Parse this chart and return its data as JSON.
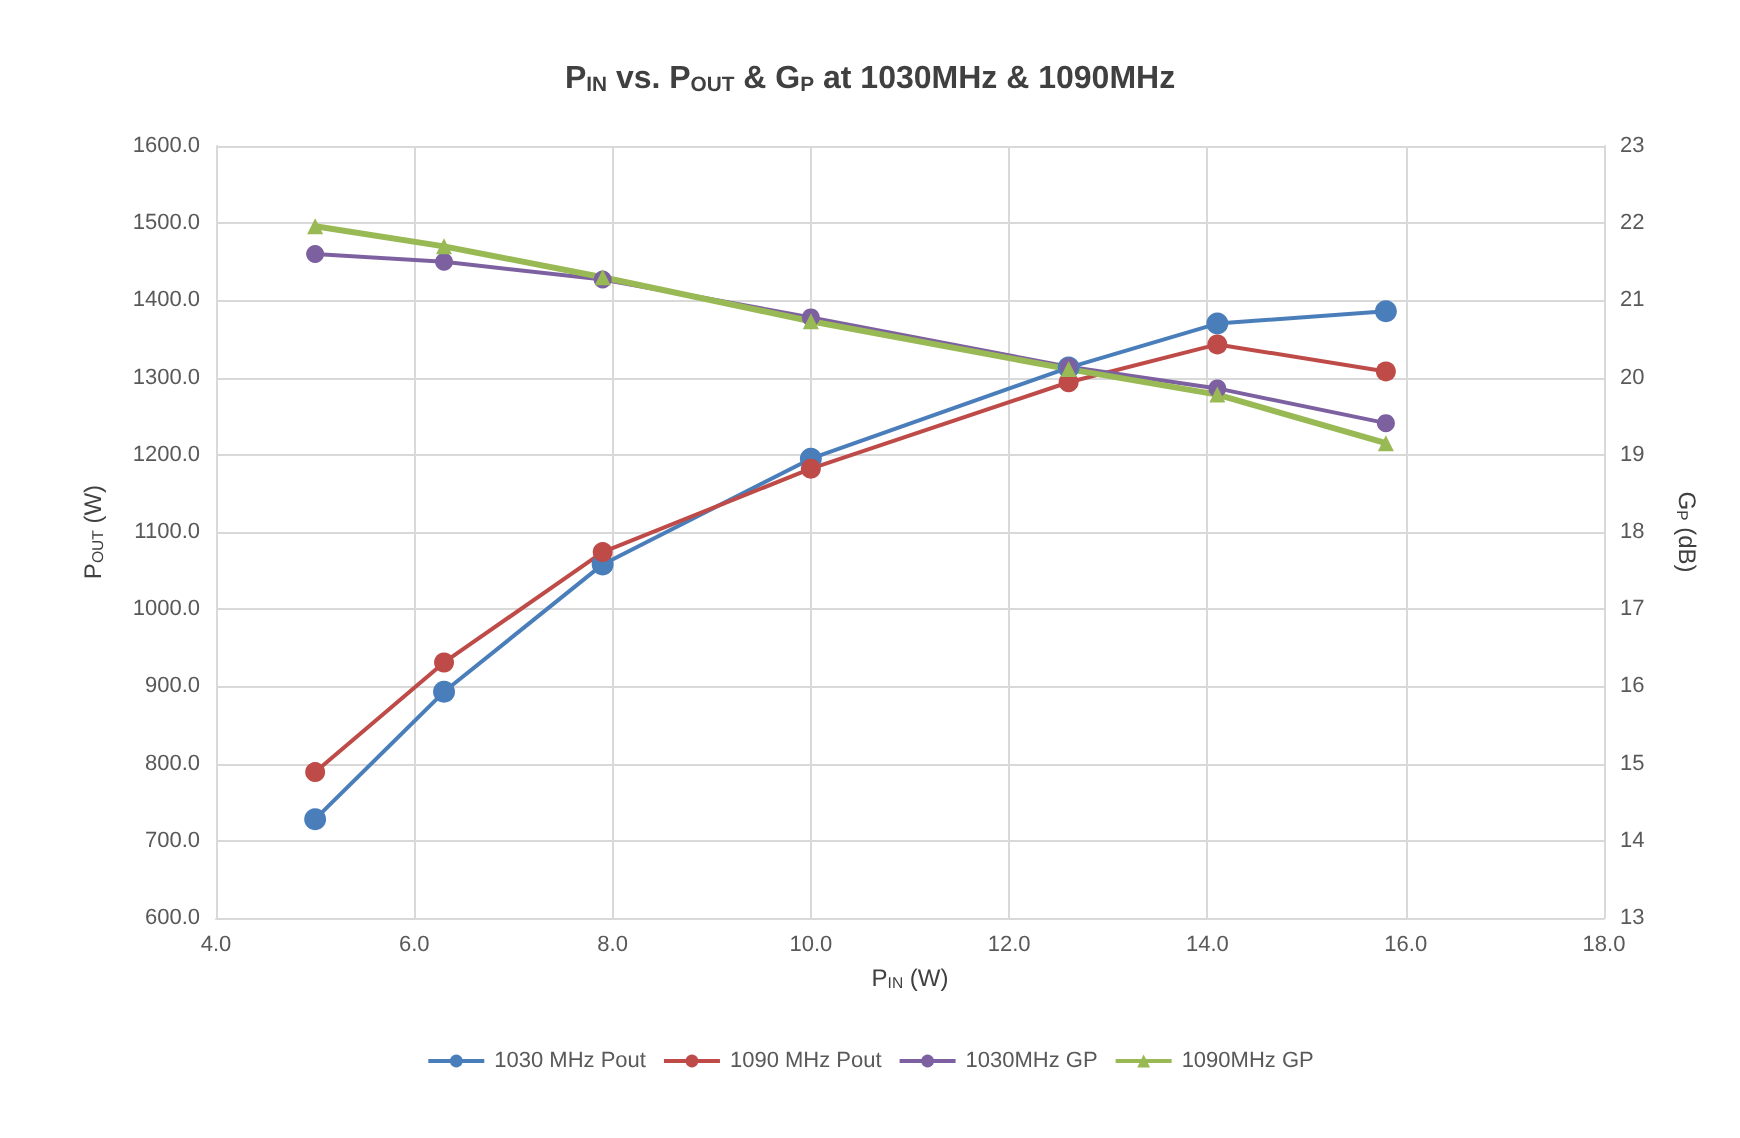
{
  "chart_data": {
    "type": "line",
    "title": "P$_{IN}$ vs. P$_{OUT}$ & G$_{P}$ at 1030MHz & 1090MHz",
    "xlabel": "P$_{IN}$ (W)",
    "ylabel": "P$_{OUT}$ (W)",
    "y2label": "G$_{P}$ (dB)",
    "x": [
      5.0,
      6.3,
      7.9,
      10.0,
      12.6,
      14.1,
      15.8
    ],
    "series": [
      {
        "name": "1030 MHz Pout",
        "color": "#4a7ebb",
        "marker": "circle",
        "values": [
          728,
          893,
          1058,
          1195,
          1313,
          1370,
          1386
        ]
      },
      {
        "name": "1090 MHz Pout",
        "color": "#be4b48",
        "marker": "circle",
        "values": [
          789,
          931,
          1074,
          1182,
          1294,
          1343,
          1308
        ]
      },
      {
        "name": "1030MHz GP",
        "color": "#7d60a0",
        "marker": "circle",
        "axis": "y2",
        "values": [
          21.6,
          21.5,
          21.27,
          20.78,
          20.14,
          19.86,
          19.41
        ]
      },
      {
        "name": "1090MHz GP",
        "color": "#98b954",
        "marker": "triangle",
        "axis": "y2",
        "values": [
          21.96,
          21.7,
          21.3,
          20.73,
          20.11,
          19.78,
          19.15
        ]
      }
    ],
    "xlim": [
      4,
      18
    ],
    "xticks": [
      {
        "value": 4,
        "label": "4.0"
      },
      {
        "value": 6,
        "label": "6.0"
      },
      {
        "value": 8,
        "label": "8.0"
      },
      {
        "value": 10,
        "label": "10.0"
      },
      {
        "value": 12,
        "label": "12.0"
      },
      {
        "value": 14,
        "label": "14.0"
      },
      {
        "value": 16,
        "label": "16.0"
      },
      {
        "value": 18,
        "label": "18.0"
      }
    ],
    "ylim": [
      600,
      1600
    ],
    "yticks": [
      {
        "value": 600,
        "label": "600.0"
      },
      {
        "value": 700,
        "label": "700.0"
      },
      {
        "value": 800,
        "label": "800.0"
      },
      {
        "value": 900,
        "label": "900.0"
      },
      {
        "value": 1000,
        "label": "1000.0"
      },
      {
        "value": 1100,
        "label": "1100.0"
      },
      {
        "value": 1200,
        "label": "1200.0"
      },
      {
        "value": 1300,
        "label": "1300.0"
      },
      {
        "value": 1400,
        "label": "1400.0"
      },
      {
        "value": 1500,
        "label": "1500.0"
      },
      {
        "value": 1600,
        "label": "1600.0"
      }
    ],
    "y2lim": [
      13,
      23
    ],
    "y2ticks": [
      13,
      14,
      15,
      16,
      17,
      18,
      19,
      20,
      21,
      22,
      23
    ],
    "grid": true,
    "legend": "bottom"
  }
}
